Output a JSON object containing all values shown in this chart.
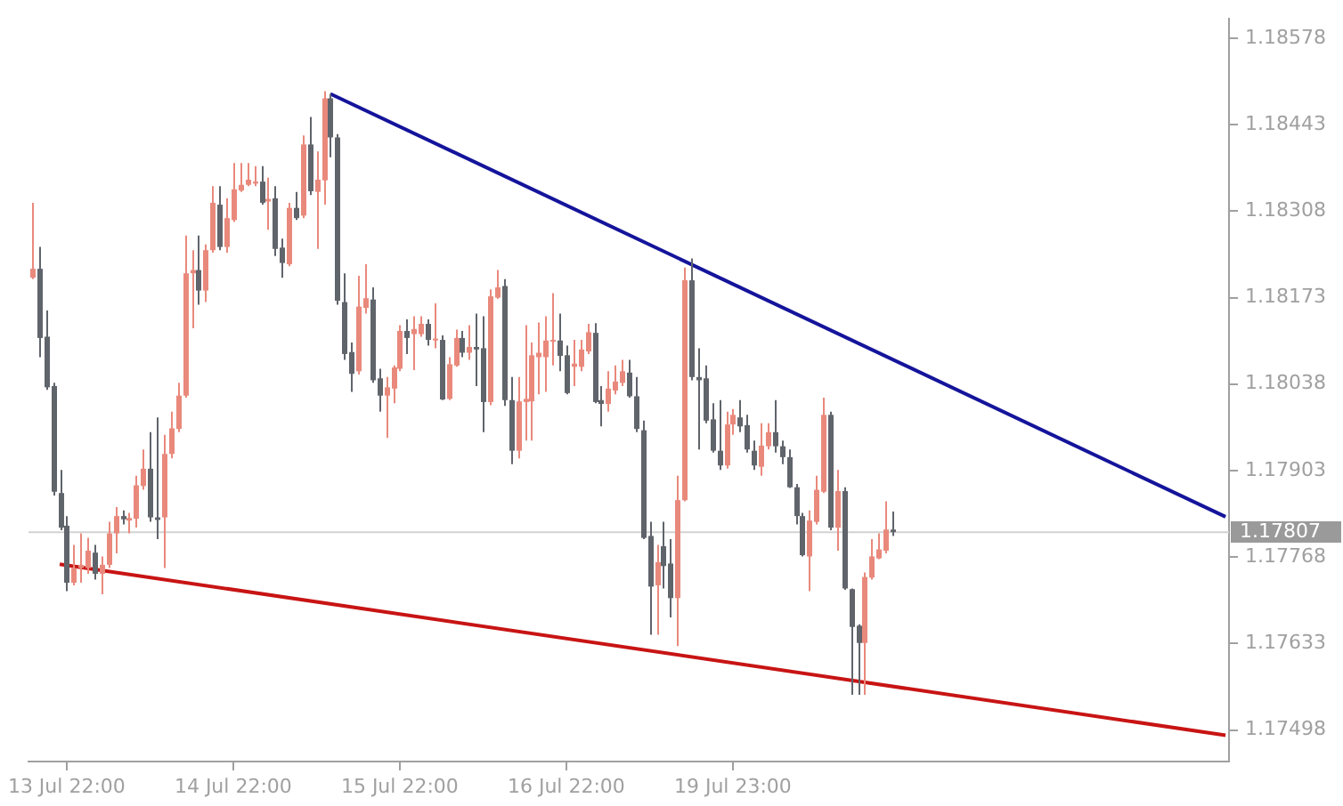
{
  "chart_data": {
    "type": "candlestick",
    "categories": [
      null,
      null,
      null,
      null,
      null,
      "13 Jul 22:00",
      null,
      null,
      null,
      null,
      null,
      null,
      null,
      null,
      null,
      null,
      null,
      null,
      null,
      null,
      null,
      null,
      null,
      null,
      null,
      null,
      null,
      null,
      null,
      "14 Jul 22:00",
      null,
      null,
      null,
      null,
      null,
      null,
      null,
      null,
      null,
      null,
      null,
      null,
      null,
      null,
      null,
      null,
      null,
      null,
      null,
      null,
      null,
      null,
      null,
      "15 Jul 22:00",
      null,
      null,
      null,
      null,
      null,
      null,
      null,
      null,
      null,
      null,
      null,
      null,
      null,
      null,
      null,
      null,
      null,
      null,
      null,
      null,
      null,
      null,
      null,
      "16 Jul 22:00",
      null,
      null,
      null,
      null,
      null,
      null,
      null,
      null,
      null,
      null,
      null,
      null,
      null,
      null,
      null,
      null,
      null,
      null,
      null,
      null,
      null,
      null,
      null,
      "19 Jul 23:00",
      null,
      null,
      null,
      null,
      null,
      null,
      null,
      null,
      null,
      null,
      null,
      null,
      null,
      null,
      null,
      null,
      null,
      null,
      null,
      null,
      null,
      null,
      null,
      null,
      null,
      null,
      null,
      null,
      null,
      null,
      null,
      null,
      null,
      null,
      null,
      null,
      null,
      null,
      null,
      null,
      null,
      null,
      null,
      null,
      null,
      null,
      null,
      null,
      null,
      null,
      null,
      null,
      null,
      null,
      null,
      null,
      null,
      null,
      null,
      null,
      null,
      null,
      null,
      null,
      null,
      null,
      null,
      null,
      null,
      null,
      null
    ],
    "ohlc": [
      [
        1.18204,
        1.18321,
        1.18202,
        1.18218
      ],
      [
        1.18218,
        1.18252,
        1.1808,
        1.1811
      ],
      [
        1.18112,
        1.18153,
        1.18029,
        1.18033
      ],
      [
        1.18035,
        1.1804,
        1.17864,
        1.1787
      ],
      [
        1.17868,
        1.17904,
        1.1781,
        1.17814
      ],
      [
        1.17817,
        1.17832,
        1.17715,
        1.17728
      ],
      [
        1.17728,
        1.17787,
        1.17724,
        1.17751
      ],
      [
        1.17751,
        1.17805,
        1.17728,
        1.17756
      ],
      [
        1.17751,
        1.17798,
        1.17742,
        1.17778
      ],
      [
        1.17775,
        1.17787,
        1.17733,
        1.17742
      ],
      [
        1.17742,
        1.17769,
        1.1771,
        1.17756
      ],
      [
        1.17756,
        1.17823,
        1.17751,
        1.17805
      ],
      [
        1.17805,
        1.17846,
        1.17774,
        1.17832
      ],
      [
        1.17832,
        1.17841,
        1.17819,
        1.17827
      ],
      [
        1.17825,
        1.17837,
        1.17805,
        1.17829
      ],
      [
        1.17828,
        1.17895,
        1.17814,
        1.1788
      ],
      [
        1.17879,
        1.17936,
        1.17873,
        1.17906
      ],
      [
        1.17906,
        1.17963,
        1.17823,
        1.1783
      ],
      [
        1.1783,
        1.17986,
        1.17796,
        1.17826
      ],
      [
        1.1783,
        1.17959,
        1.17751,
        1.17929
      ],
      [
        1.17929,
        1.17995,
        1.17922,
        1.17969
      ],
      [
        1.17968,
        1.1804,
        1.17963,
        1.1802
      ],
      [
        1.1802,
        1.1827,
        1.18017,
        1.18211
      ],
      [
        1.18211,
        1.18247,
        1.18125,
        1.18216
      ],
      [
        1.18216,
        1.1827,
        1.18162,
        1.18184
      ],
      [
        1.18184,
        1.18256,
        1.18166,
        1.18247
      ],
      [
        1.18247,
        1.18347,
        1.18243,
        1.18321
      ],
      [
        1.18318,
        1.18347,
        1.18247,
        1.18252
      ],
      [
        1.18252,
        1.18328,
        1.18243,
        1.18297
      ],
      [
        1.18294,
        1.18383,
        1.18291,
        1.18342
      ],
      [
        1.1834,
        1.18383,
        1.18338,
        1.18349
      ],
      [
        1.18349,
        1.18383,
        1.18347,
        1.18357
      ],
      [
        1.18351,
        1.18378,
        1.18347,
        1.18354
      ],
      [
        1.18354,
        1.18378,
        1.18318,
        1.18321
      ],
      [
        1.18323,
        1.1836,
        1.18279,
        1.18327
      ],
      [
        1.18328,
        1.18347,
        1.18238,
        1.18249
      ],
      [
        1.18251,
        1.18265,
        1.18204,
        1.18227
      ],
      [
        1.18225,
        1.18321,
        1.18222,
        1.18313
      ],
      [
        1.18313,
        1.18338,
        1.18294,
        1.18297
      ],
      [
        1.18301,
        1.18426,
        1.18297,
        1.18412
      ],
      [
        1.18412,
        1.18455,
        1.18333,
        1.18339
      ],
      [
        1.18338,
        1.18401,
        1.18249,
        1.18357
      ],
      [
        1.18356,
        1.18495,
        1.18318,
        1.18484
      ],
      [
        1.18484,
        1.18491,
        1.18392,
        1.18423
      ],
      [
        1.18423,
        1.18428,
        1.18162,
        1.18168
      ],
      [
        1.18166,
        1.18211,
        1.18076,
        1.18085
      ],
      [
        1.18088,
        1.18103,
        1.18026,
        1.18054
      ],
      [
        1.18058,
        1.18207,
        1.18053,
        1.18159
      ],
      [
        1.18157,
        1.18225,
        1.18148,
        1.18172
      ],
      [
        1.1817,
        1.18189,
        1.1804,
        1.18044
      ],
      [
        1.18047,
        1.18062,
        1.17995,
        1.1802
      ],
      [
        1.1802,
        1.18049,
        1.17954,
        1.18033
      ],
      [
        1.18031,
        1.18067,
        1.18008,
        1.18064
      ],
      [
        1.18062,
        1.1813,
        1.18058,
        1.18121
      ],
      [
        1.18121,
        1.18139,
        1.18085,
        1.1811
      ],
      [
        1.18116,
        1.18144,
        1.1806,
        1.18124
      ],
      [
        1.18116,
        1.18144,
        1.18112,
        1.18132
      ],
      [
        1.18132,
        1.18139,
        1.18098,
        1.18107
      ],
      [
        1.18107,
        1.18164,
        1.18094,
        1.18109
      ],
      [
        1.18107,
        1.18114,
        1.18013,
        1.18014
      ],
      [
        1.18015,
        1.1808,
        1.18013,
        1.18069
      ],
      [
        1.18067,
        1.18123,
        1.18065,
        1.1811
      ],
      [
        1.1811,
        1.18121,
        1.1808,
        1.18087
      ],
      [
        1.18087,
        1.1813,
        1.18076,
        1.18096
      ],
      [
        1.18096,
        1.18148,
        1.18035,
        1.18092
      ],
      [
        1.18094,
        1.18144,
        1.17963,
        1.1801
      ],
      [
        1.1801,
        1.18186,
        1.18005,
        1.18175
      ],
      [
        1.18173,
        1.18216,
        1.18171,
        1.18189
      ],
      [
        1.18191,
        1.18202,
        1.18004,
        1.18013
      ],
      [
        1.18013,
        1.18049,
        1.17913,
        1.17934
      ],
      [
        1.17934,
        1.18049,
        1.17922,
        1.18011
      ],
      [
        1.1801,
        1.1813,
        1.1795,
        1.18015
      ],
      [
        1.18011,
        1.18103,
        1.1795,
        1.18083
      ],
      [
        1.1808,
        1.18134,
        1.18022,
        1.18087
      ],
      [
        1.1808,
        1.18144,
        1.18026,
        1.18106
      ],
      [
        1.18105,
        1.1818,
        1.18067,
        1.18107
      ],
      [
        1.18106,
        1.18148,
        1.18058,
        1.18082
      ],
      [
        1.18083,
        1.18098,
        1.18022,
        1.18024
      ],
      [
        1.18065,
        1.18107,
        1.18035,
        1.1807
      ],
      [
        1.18065,
        1.18107,
        1.18058,
        1.18092
      ],
      [
        1.18089,
        1.18132,
        1.18085,
        1.18119
      ],
      [
        1.18118,
        1.18133,
        1.18008,
        1.1801
      ],
      [
        1.18013,
        1.18035,
        1.17972,
        1.18007
      ],
      [
        1.18007,
        1.18058,
        1.17995,
        1.18031
      ],
      [
        1.18028,
        1.18067,
        1.18022,
        1.18042
      ],
      [
        1.1804,
        1.18076,
        1.18035,
        1.18058
      ],
      [
        1.18056,
        1.18076,
        1.18017,
        1.18019
      ],
      [
        1.18019,
        1.18049,
        1.17963,
        1.17968
      ],
      [
        1.17966,
        1.17981,
        1.17796,
        1.17798
      ],
      [
        1.17801,
        1.17823,
        1.17647,
        1.17722
      ],
      [
        1.17724,
        1.17787,
        1.17647,
        1.1776
      ],
      [
        1.17785,
        1.17823,
        1.17719,
        1.17754
      ],
      [
        1.17758,
        1.17796,
        1.17674,
        1.17704
      ],
      [
        1.17704,
        1.17895,
        1.17629,
        1.17857
      ],
      [
        1.17857,
        1.1822,
        1.17855,
        1.182
      ],
      [
        1.182,
        1.18234,
        1.18044,
        1.18049
      ],
      [
        1.18049,
        1.18094,
        1.17936,
        1.18044
      ],
      [
        1.18047,
        1.18067,
        1.17977,
        1.17981
      ],
      [
        1.17983,
        1.18008,
        1.17931,
        1.17934
      ],
      [
        1.17934,
        1.18013,
        1.17904,
        1.17911
      ],
      [
        1.17911,
        1.17995,
        1.17906,
        1.17975
      ],
      [
        1.17975,
        1.17999,
        1.17959,
        1.1799
      ],
      [
        1.17986,
        1.18013,
        1.17963,
        1.17972
      ],
      [
        1.17974,
        1.1799,
        1.17931,
        1.17936
      ],
      [
        1.17934,
        1.1795,
        1.17904,
        1.17911
      ],
      [
        1.17909,
        1.17977,
        1.17895,
        1.17942
      ],
      [
        1.17941,
        1.17977,
        1.17936,
        1.17963
      ],
      [
        1.17963,
        1.18013,
        1.17931,
        1.17941
      ],
      [
        1.17941,
        1.1795,
        1.17913,
        1.17924
      ],
      [
        1.17924,
        1.17936,
        1.17876,
        1.17877
      ],
      [
        1.17877,
        1.17882,
        1.17819,
        1.17832
      ],
      [
        1.17832,
        1.17837,
        1.17769,
        1.17771
      ],
      [
        1.17769,
        1.17841,
        1.17715,
        1.17825
      ],
      [
        1.17823,
        1.17895,
        1.17819,
        1.17873
      ],
      [
        1.1787,
        1.18017,
        1.17868,
        1.1799
      ],
      [
        1.1799,
        1.17995,
        1.1781,
        1.17814
      ],
      [
        1.17814,
        1.17904,
        1.17778,
        1.17871
      ],
      [
        1.17871,
        1.17877,
        1.17717,
        1.17719
      ],
      [
        1.17718,
        1.17719,
        1.17553,
        1.17659
      ],
      [
        1.17661,
        1.17663,
        1.17553,
        1.17634
      ],
      [
        1.17634,
        1.17744,
        1.17553,
        1.17737
      ],
      [
        1.17736,
        1.17796,
        1.17733,
        1.17769
      ],
      [
        1.17766,
        1.17805,
        1.17765,
        1.1778
      ],
      [
        1.17778,
        1.17855,
        1.17774,
        1.17811
      ],
      [
        1.17811,
        1.17839,
        1.17801,
        1.17807
      ],
      null,
      null,
      null,
      null,
      null,
      null,
      null,
      null,
      null,
      null,
      null,
      null,
      null,
      null,
      null,
      null,
      null,
      null,
      null,
      null,
      null,
      null,
      null,
      null,
      null,
      null,
      null,
      null,
      null,
      null,
      null,
      null,
      null,
      null,
      null,
      null,
      null,
      null,
      null,
      null,
      null,
      null,
      null,
      null,
      null,
      null,
      null,
      null
    ],
    "colors": [
      "#e9897c",
      "#60646b",
      "#60646b",
      "#60646b",
      "#60646b",
      "#60646b",
      "#e9897c",
      "#e9897c",
      "#e9897c",
      "#60646b",
      "#e9897c",
      "#e9897c",
      "#e9897c",
      "#60646b",
      "#e9897c",
      "#e9897c",
      "#e9897c",
      "#60646b",
      "#60646b",
      "#e9897c",
      "#e9897c",
      "#e9897c",
      "#e9897c",
      "#e9897c",
      "#60646b",
      "#e9897c",
      "#e9897c",
      "#60646b",
      "#e9897c",
      "#e9897c",
      "#e9897c",
      "#e9897c",
      "#e9897c",
      "#60646b",
      "#e9897c",
      "#60646b",
      "#60646b",
      "#e9897c",
      "#60646b",
      "#e9897c",
      "#60646b",
      "#e9897c",
      "#e9897c",
      "#60646b",
      "#60646b",
      "#60646b",
      "#60646b",
      "#e9897c",
      "#e9897c",
      "#60646b",
      "#60646b",
      "#e9897c",
      "#e9897c",
      "#e9897c",
      "#60646b",
      "#e9897c",
      "#e9897c",
      "#60646b",
      "#e9897c",
      "#60646b",
      "#e9897c",
      "#e9897c",
      "#60646b",
      "#e9897c",
      "#60646b",
      "#60646b",
      "#e9897c",
      "#e9897c",
      "#60646b",
      "#60646b",
      "#e9897c",
      "#e9897c",
      "#e9897c",
      "#e9897c",
      "#e9897c",
      "#e9897c",
      "#60646b",
      "#60646b",
      "#e9897c",
      "#e9897c",
      "#e9897c",
      "#60646b",
      "#60646b",
      "#e9897c",
      "#e9897c",
      "#e9897c",
      "#60646b",
      "#60646b",
      "#60646b",
      "#60646b",
      "#e9897c",
      "#60646b",
      "#60646b",
      "#e9897c",
      "#e9897c",
      "#60646b",
      "#60646b",
      "#60646b",
      "#60646b",
      "#60646b",
      "#e9897c",
      "#e9897c",
      "#60646b",
      "#60646b",
      "#60646b",
      "#e9897c",
      "#e9897c",
      "#60646b",
      "#60646b",
      "#60646b",
      "#60646b",
      "#60646b",
      "#e9897c",
      "#e9897c",
      "#e9897c",
      "#60646b",
      "#e9897c",
      "#60646b",
      "#60646b",
      "#60646b",
      "#e9897c",
      "#e9897c",
      "#e9897c",
      "#e9897c",
      "#60646b",
      null,
      null,
      null,
      null,
      null,
      null,
      null,
      null,
      null,
      null,
      null,
      null,
      null,
      null,
      null,
      null,
      null,
      null,
      null,
      null,
      null,
      null,
      null,
      null,
      null,
      null,
      null,
      null,
      null,
      null,
      null,
      null,
      null,
      null,
      null,
      null,
      null,
      null,
      null,
      null,
      null,
      null,
      null,
      null,
      null,
      null,
      null,
      null
    ],
    "series": [
      {
        "type": "line",
        "color": "#14149b",
        "values": [
          null,
          null,
          null,
          null,
          null,
          null,
          null,
          null,
          null,
          null,
          null,
          null,
          null,
          null,
          null,
          null,
          null,
          null,
          null,
          null,
          null,
          null,
          null,
          null,
          null,
          null,
          null,
          null,
          null,
          null,
          null,
          null,
          null,
          null,
          null,
          null,
          null,
          null,
          null,
          null,
          null,
          null,
          null,
          1.18491,
          null,
          null,
          null,
          null,
          null,
          null,
          null,
          null,
          null,
          null,
          null,
          null,
          null,
          null,
          null,
          null,
          null,
          null,
          null,
          null,
          null,
          null,
          null,
          null,
          null,
          null,
          null,
          null,
          null,
          null,
          null,
          null,
          null,
          null,
          null,
          null,
          null,
          null,
          null,
          null,
          null,
          null,
          null,
          null,
          null,
          null,
          null,
          null,
          null,
          null,
          null,
          null,
          null,
          null,
          null,
          null,
          null,
          null,
          null,
          null,
          null,
          null,
          null,
          null,
          null,
          null,
          null,
          null,
          null,
          null,
          null,
          null,
          null,
          null,
          null,
          null,
          null,
          null,
          null,
          null,
          null,
          null,
          null,
          null,
          null,
          null,
          null,
          null,
          null,
          null,
          null,
          null,
          null,
          null,
          null,
          null,
          null,
          null,
          null,
          null,
          null,
          null,
          null,
          null,
          null,
          null,
          null,
          null,
          null,
          null,
          null,
          null,
          null,
          null,
          null,
          null,
          null,
          null,
          null,
          null,
          null,
          null,
          null,
          null,
          null,
          null,
          null,
          null,
          1.17831
        ]
      },
      {
        "type": "line",
        "color": "#c81414",
        "values": [
          null,
          null,
          null,
          null,
          1.17757,
          null,
          null,
          null,
          null,
          null,
          null,
          null,
          null,
          null,
          null,
          null,
          null,
          null,
          null,
          null,
          null,
          null,
          null,
          null,
          null,
          null,
          null,
          null,
          null,
          null,
          null,
          null,
          null,
          null,
          null,
          null,
          null,
          null,
          null,
          null,
          null,
          null,
          null,
          null,
          null,
          null,
          null,
          null,
          null,
          null,
          null,
          null,
          null,
          null,
          null,
          null,
          null,
          null,
          null,
          null,
          null,
          null,
          null,
          null,
          null,
          null,
          null,
          null,
          null,
          null,
          null,
          null,
          null,
          null,
          null,
          null,
          null,
          null,
          null,
          null,
          null,
          null,
          null,
          null,
          null,
          null,
          null,
          null,
          null,
          null,
          null,
          null,
          null,
          null,
          null,
          null,
          null,
          null,
          null,
          null,
          null,
          null,
          null,
          null,
          null,
          null,
          null,
          null,
          null,
          null,
          null,
          null,
          null,
          null,
          null,
          null,
          null,
          null,
          null,
          null,
          null,
          null,
          null,
          null,
          null,
          null,
          null,
          null,
          null,
          null,
          null,
          null,
          null,
          null,
          null,
          null,
          null,
          null,
          null,
          null,
          null,
          null,
          null,
          null,
          null,
          null,
          null,
          null,
          null,
          null,
          null,
          null,
          null,
          null,
          null,
          null,
          null,
          null,
          null,
          null,
          null,
          null,
          null,
          null,
          null,
          null,
          null,
          null,
          null,
          null,
          null,
          null,
          1.1749
        ]
      }
    ],
    "ylim": [
      1.17449,
      1.18608
    ],
    "yticks": [
      1.17498,
      1.17633,
      1.17768,
      1.17903,
      1.18038,
      1.18173,
      1.18308,
      1.18443,
      1.18578
    ],
    "ref_lines": [
      {
        "axis": "y",
        "value": 1.17807,
        "label": "1.17807",
        "color": "#d2d2d2"
      }
    ],
    "grid": false,
    "legend": false
  }
}
